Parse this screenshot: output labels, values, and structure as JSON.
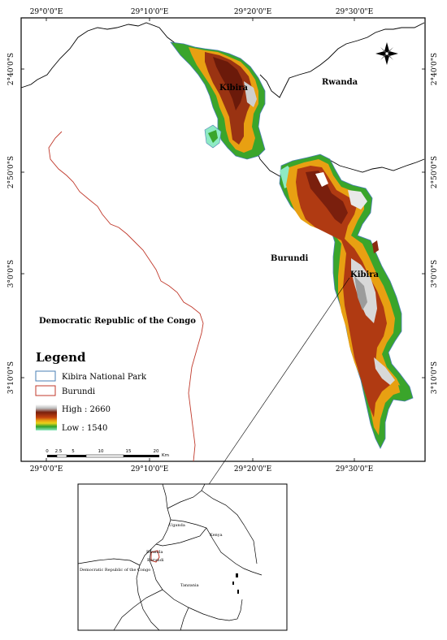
{
  "coords": {
    "top": [
      "29°0'0\"E",
      "29°10'0\"E",
      "29°20'0\"E",
      "29°30'0\"E"
    ],
    "bottom": [
      "29°0'0\"E",
      "29°10'0\"E",
      "29°20'0\"E",
      "29°30'0\"E"
    ],
    "left": [
      "2°40'0\"S",
      "2°50'0\"S",
      "3°0'0\"S",
      "3°10'0\"S"
    ],
    "right": [
      "2°40'0\"S",
      "2°50'0\"S",
      "3°0'0\"S",
      "3°10'0\"S"
    ]
  },
  "places": {
    "rwanda": "Rwanda",
    "burundi": "Burundi",
    "drc": "Democratic Republic of the Congo",
    "kibira_north": "Kibira",
    "kibira_south": "Kibira"
  },
  "legend": {
    "title": "Legend",
    "park": "Kibira National Park",
    "country": "Burundi",
    "high": "High : 2660",
    "low": "Low : 1540",
    "park_color": "#4a7fb5",
    "country_color": "#c0392b"
  },
  "scale": {
    "ticks": [
      "0",
      "2.5",
      "5",
      "10",
      "15",
      "20"
    ],
    "unit": "Km"
  },
  "inset": {
    "uganda": "Uganda",
    "kenya": "Kenya",
    "rwanda": "Rwanda",
    "burundi": "Burundi",
    "tanzania": "Tanzania",
    "drc": "Democratic Republic of the Congo"
  },
  "elevation_colors": [
    "#ffffff",
    "#9c9c9c",
    "#7a1f0d",
    "#b03a12",
    "#e07b0a",
    "#e8c81a",
    "#3aa52b",
    "#7fe0a8"
  ],
  "compass_icon": "north-arrow-icon"
}
